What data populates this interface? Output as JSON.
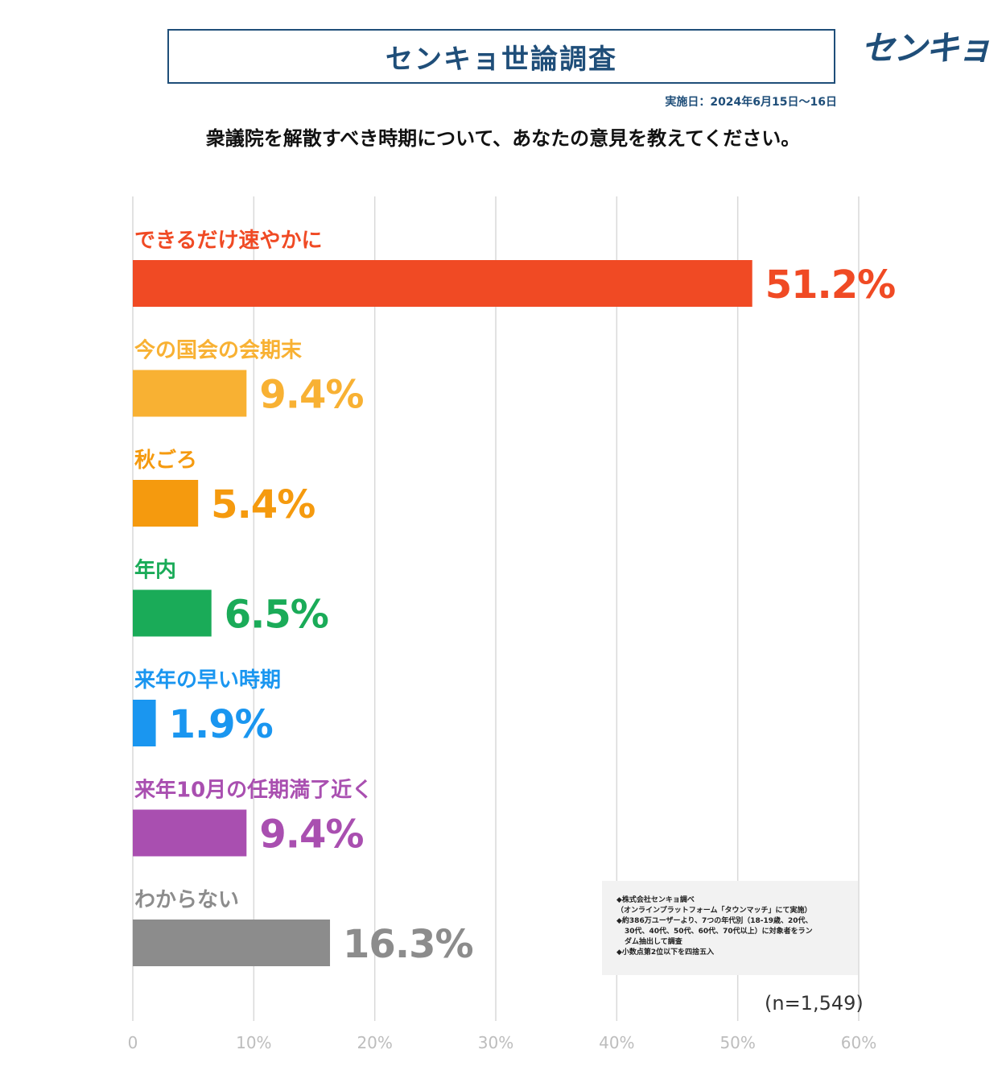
{
  "header": {
    "title": "センキョ世論調査",
    "logo": "センキョ",
    "date": "実施日：2024年6月15日～16日",
    "question": "衆議院を解散すべき時期について、あなたの意見を教えてください。"
  },
  "chart_data": {
    "type": "bar",
    "orientation": "horizontal",
    "categories": [
      "できるだけ速やかに",
      "今の国会の会期末",
      "秋ごろ",
      "年内",
      "来年の早い時期",
      "来年10月の任期満了近く",
      "わからない"
    ],
    "values": [
      51.2,
      9.4,
      5.4,
      6.5,
      1.9,
      9.4,
      16.3
    ],
    "value_labels": [
      "51.2%",
      "9.4%",
      "5.4%",
      "6.5%",
      "1.9%",
      "9.4%",
      "16.3%"
    ],
    "colors": [
      "#f04a24",
      "#f8b133",
      "#f59a0e",
      "#1aab58",
      "#1a96f0",
      "#a94fb0",
      "#8c8c8c"
    ],
    "xlim": [
      0,
      60
    ],
    "ticks": [
      0,
      10,
      20,
      30,
      40,
      50,
      60
    ],
    "tick_labels": [
      "0",
      "10%",
      "20%",
      "30%",
      "40%",
      "50%",
      "60%"
    ],
    "grid": true
  },
  "footnote": {
    "lines": [
      "◆株式会社センキョ調べ",
      "（オンラインプラットフォーム「タウンマッチ」にて実施）",
      "◆約386万ユーザーより、7つの年代別（18-19歳、20代、",
      "30代、40代、50代、60代、70代以上）に対象者をラン",
      "ダム抽出して調査",
      "◆小数点第2位以下を四捨五入"
    ]
  },
  "sample_size": "(n=1,549)"
}
